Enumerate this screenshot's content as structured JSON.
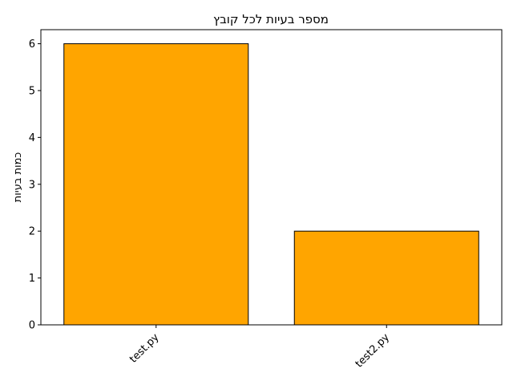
{
  "chart_data": {
    "type": "bar",
    "title": "מספר בעיות לכל קובץ",
    "xlabel": "",
    "ylabel": "כמות בעיות",
    "categories": [
      "test.py",
      "test2.py"
    ],
    "values": [
      6,
      2
    ],
    "ylim": [
      0,
      6.3
    ],
    "yticks": [
      0,
      1,
      2,
      3,
      4,
      5,
      6
    ],
    "bar_color": "#ffa500",
    "bar_edge_color": "#000000",
    "grid": false,
    "legend": "none"
  }
}
